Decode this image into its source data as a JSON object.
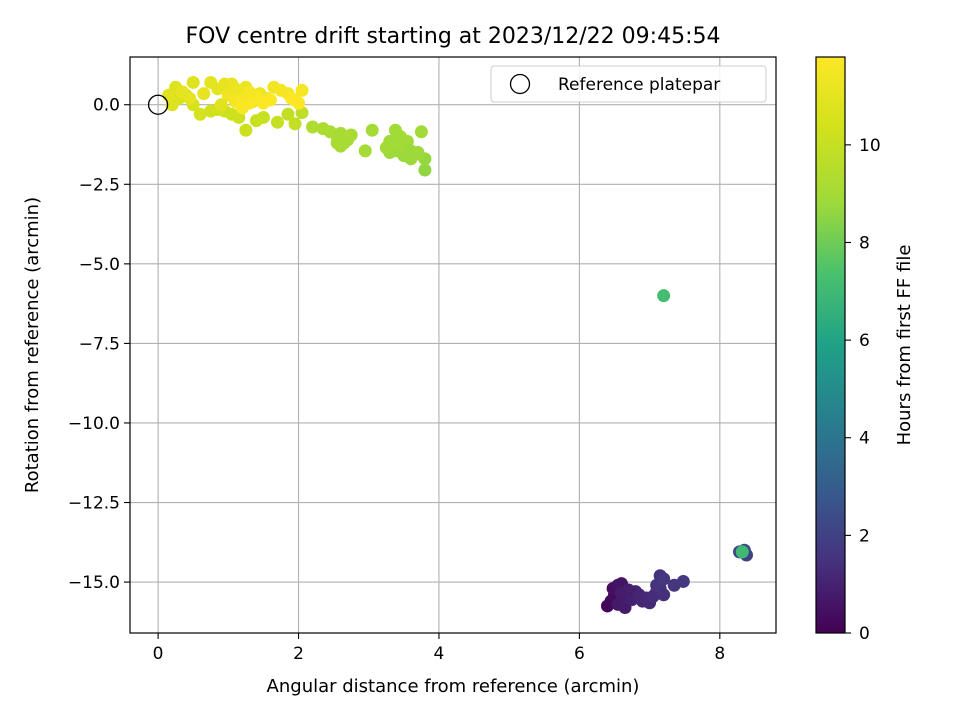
{
  "chart_data": {
    "type": "scatter",
    "title": "FOV centre drift starting at 2023/12/22 09:45:54",
    "xlabel": "Angular distance from reference (arcmin)",
    "ylabel": "Rotation from reference (arcmin)",
    "xlim": [
      -0.4,
      8.8
    ],
    "ylim": [
      -16.6,
      1.5
    ],
    "xticks": [
      0,
      2,
      4,
      6,
      8
    ],
    "xtick_labels": [
      "0",
      "2",
      "4",
      "6",
      "8"
    ],
    "yticks": [
      0.0,
      -2.5,
      -5.0,
      -7.5,
      -10.0,
      -12.5,
      -15.0
    ],
    "ytick_labels": [
      "0.0",
      "−2.5",
      "−5.0",
      "−7.5",
      "−10.0",
      "−12.5",
      "−15.0"
    ],
    "grid": true,
    "legend": {
      "placement": "upper-right",
      "entries": [
        "Reference platepar"
      ]
    },
    "reference_point": {
      "x": 0.0,
      "y": 0.0
    },
    "colorbar": {
      "label": "Hours from first FF file",
      "min": 0,
      "max": 11.8,
      "ticks": [
        0,
        2,
        4,
        6,
        8,
        10
      ],
      "tick_labels": [
        "0",
        "2",
        "4",
        "6",
        "8",
        "10"
      ],
      "colormap": "viridis"
    },
    "series": [
      {
        "points": [
          [
            6.4,
            -15.75,
            0.1
          ],
          [
            6.45,
            -15.6,
            0.2
          ],
          [
            6.5,
            -15.4,
            0.3
          ],
          [
            6.48,
            -15.2,
            0.4
          ],
          [
            6.55,
            -15.1,
            0.5
          ],
          [
            6.6,
            -15.05,
            0.6
          ],
          [
            6.55,
            -15.7,
            0.7
          ],
          [
            6.65,
            -15.8,
            0.8
          ],
          [
            6.7,
            -15.5,
            0.9
          ],
          [
            6.75,
            -15.55,
            1.0
          ],
          [
            6.8,
            -15.3,
            1.0
          ],
          [
            6.85,
            -15.4,
            1.1
          ],
          [
            6.9,
            -15.6,
            1.1
          ],
          [
            6.95,
            -15.5,
            1.2
          ],
          [
            7.0,
            -15.65,
            1.2
          ],
          [
            7.05,
            -15.45,
            1.3
          ],
          [
            7.1,
            -15.3,
            1.3
          ],
          [
            7.15,
            -15.2,
            1.4
          ],
          [
            7.2,
            -15.4,
            1.4
          ],
          [
            7.1,
            -15.1,
            1.5
          ],
          [
            7.15,
            -14.8,
            1.5
          ],
          [
            7.2,
            -14.9,
            1.6
          ],
          [
            7.35,
            -15.1,
            1.6
          ],
          [
            7.48,
            -14.98,
            1.7
          ],
          [
            6.6,
            -15.35,
            0.8
          ],
          [
            6.7,
            -15.25,
            0.9
          ],
          [
            8.28,
            -14.05,
            2.2
          ],
          [
            8.38,
            -14.15,
            2.0
          ],
          [
            8.35,
            -14.0,
            2.4
          ],
          [
            8.32,
            -14.05,
            7.0
          ],
          [
            7.2,
            -6.0,
            7.2
          ],
          [
            3.8,
            -2.05,
            8.6
          ],
          [
            3.8,
            -1.7,
            8.7
          ],
          [
            3.7,
            -1.5,
            8.7
          ],
          [
            3.6,
            -1.7,
            8.8
          ],
          [
            3.5,
            -1.6,
            8.8
          ],
          [
            3.4,
            -1.45,
            8.8
          ],
          [
            3.3,
            -1.5,
            8.8
          ],
          [
            3.25,
            -1.35,
            8.9
          ],
          [
            3.3,
            -1.15,
            8.9
          ],
          [
            3.4,
            -1.25,
            8.9
          ],
          [
            3.5,
            -1.3,
            8.9
          ],
          [
            3.55,
            -1.15,
            8.9
          ],
          [
            3.45,
            -1.0,
            8.9
          ],
          [
            3.38,
            -0.8,
            8.9
          ],
          [
            3.6,
            -1.45,
            8.8
          ],
          [
            3.05,
            -0.8,
            9.0
          ],
          [
            3.7,
            -1.55,
            8.8
          ],
          [
            3.75,
            -0.85,
            8.9
          ],
          [
            2.95,
            -1.45,
            9.0
          ],
          [
            2.75,
            -0.95,
            9.1
          ],
          [
            2.65,
            -1.2,
            9.1
          ],
          [
            2.6,
            -1.3,
            9.1
          ],
          [
            2.55,
            -1.0,
            9.1
          ],
          [
            2.45,
            -0.85,
            9.2
          ],
          [
            2.35,
            -0.75,
            9.2
          ],
          [
            2.55,
            -1.2,
            9.1
          ],
          [
            2.2,
            -0.7,
            9.3
          ],
          [
            2.6,
            -0.9,
            9.1
          ],
          [
            2.7,
            -1.1,
            9.1
          ],
          [
            2.05,
            -0.25,
            9.8
          ],
          [
            1.95,
            -0.6,
            9.9
          ],
          [
            1.85,
            -0.3,
            9.9
          ],
          [
            1.7,
            -0.55,
            10.0
          ],
          [
            1.5,
            -0.4,
            10.1
          ],
          [
            1.4,
            -0.5,
            10.1
          ],
          [
            1.25,
            -0.8,
            10.2
          ],
          [
            1.15,
            -0.4,
            10.2
          ],
          [
            1.05,
            -0.3,
            10.3
          ],
          [
            0.95,
            -0.2,
            10.3
          ],
          [
            0.85,
            -0.15,
            10.4
          ],
          [
            0.75,
            -0.2,
            10.4
          ],
          [
            0.6,
            -0.3,
            10.5
          ],
          [
            0.5,
            0.0,
            10.5
          ],
          [
            0.4,
            0.3,
            10.6
          ],
          [
            0.3,
            0.2,
            10.7
          ],
          [
            0.2,
            0.0,
            10.8
          ],
          [
            0.25,
            0.55,
            10.8
          ],
          [
            0.15,
            0.3,
            10.9
          ],
          [
            0.5,
            0.7,
            10.8
          ],
          [
            0.75,
            0.7,
            11.0
          ],
          [
            0.85,
            0.5,
            11.0
          ],
          [
            0.95,
            0.65,
            11.1
          ],
          [
            1.05,
            0.65,
            11.1
          ],
          [
            1.15,
            0.4,
            11.2
          ],
          [
            1.25,
            0.55,
            11.2
          ],
          [
            1.35,
            0.1,
            11.3
          ],
          [
            1.45,
            0.35,
            11.3
          ],
          [
            1.55,
            0.2,
            11.4
          ],
          [
            1.65,
            0.55,
            11.4
          ],
          [
            1.75,
            0.45,
            11.5
          ],
          [
            1.85,
            0.35,
            11.5
          ],
          [
            1.95,
            0.15,
            11.6
          ],
          [
            2.05,
            0.45,
            11.6
          ],
          [
            1.0,
            0.3,
            11.4
          ],
          [
            1.1,
            0.1,
            11.5
          ],
          [
            1.2,
            0.2,
            11.6
          ],
          [
            1.3,
            0.05,
            11.7
          ],
          [
            1.2,
            -0.1,
            11.7
          ],
          [
            1.4,
            0.25,
            11.7
          ],
          [
            1.6,
            0.15,
            11.8
          ],
          [
            1.5,
            0.05,
            11.8
          ],
          [
            1.9,
            0.2,
            11.8
          ],
          [
            2.0,
            0.05,
            11.8
          ],
          [
            0.35,
            0.4,
            11.0
          ],
          [
            0.45,
            0.2,
            11.0
          ],
          [
            0.65,
            0.35,
            11.1
          ],
          [
            0.9,
            0.0,
            10.9
          ],
          [
            1.3,
            0.4,
            11.5
          ],
          [
            1.1,
            0.5,
            11.3
          ]
        ]
      }
    ]
  }
}
